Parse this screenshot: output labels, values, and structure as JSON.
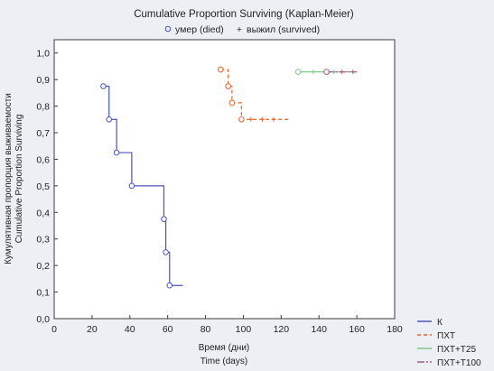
{
  "chart_data": {
    "type": "line",
    "title": "Cumulative Proportion Surviving (Kaplan-Meier)",
    "legend_markers": {
      "died": {
        "symbol": "o",
        "label": "умер (died)"
      },
      "survived": {
        "symbol": "+",
        "label": "выжил (survived)"
      }
    },
    "xlabel_ru": "Время (дни)",
    "xlabel_en": "Time (days)",
    "ylabel_ru": "Кумулятивная пропорция выживаемости",
    "ylabel_en": "Cumulative Proportion Surviving",
    "xlim": [
      0,
      180
    ],
    "ylim": [
      0,
      1.05
    ],
    "x_ticks": [
      0,
      20,
      40,
      60,
      80,
      100,
      120,
      140,
      160,
      180
    ],
    "x_tick_labels": [
      "0",
      "20",
      "40",
      "60",
      "80",
      "100",
      "120",
      "140",
      "160",
      "180"
    ],
    "y_ticks": [
      0,
      0.1,
      0.2,
      0.3,
      0.4,
      0.5,
      0.6,
      0.7,
      0.8,
      0.9,
      1.0
    ],
    "y_tick_labels": [
      "0,0",
      "0,1",
      "0,2",
      "0,3",
      "0,4",
      "0,5",
      "0,6",
      "0,7",
      "0,8",
      "0,9",
      "1,0"
    ],
    "grid": false,
    "legend_position": "bottom-right",
    "series": [
      {
        "name": "К",
        "color": "#4a55b8",
        "dash": "solid",
        "steps": [
          [
            26,
            0.875
          ],
          [
            29,
            0.75
          ],
          [
            33,
            0.625
          ],
          [
            41,
            0.5
          ],
          [
            58,
            0.375
          ],
          [
            59,
            0.25
          ],
          [
            61,
            0.125
          ],
          [
            68,
            0.125
          ]
        ],
        "died": [
          [
            26,
            0.875
          ],
          [
            29,
            0.75
          ],
          [
            33,
            0.625
          ],
          [
            41,
            0.5
          ],
          [
            58,
            0.375
          ],
          [
            59,
            0.25
          ],
          [
            61,
            0.125
          ]
        ],
        "censored": []
      },
      {
        "name": "ПХТ",
        "color": "#e8622e",
        "dash": "4,3",
        "steps": [
          [
            88,
            0.9375
          ],
          [
            92,
            0.875
          ],
          [
            94,
            0.8125
          ],
          [
            99,
            0.75
          ],
          [
            125,
            0.75
          ]
        ],
        "died": [
          [
            88,
            0.9375
          ],
          [
            92,
            0.875
          ],
          [
            94,
            0.8125
          ],
          [
            99,
            0.75
          ]
        ],
        "censored": [
          [
            104,
            0.75
          ],
          [
            110,
            0.75
          ],
          [
            116,
            0.75
          ]
        ]
      },
      {
        "name": "ПХТ+Т25",
        "color": "#7fc98a",
        "dash": "solid",
        "steps": [
          [
            129,
            0.929
          ],
          [
            160,
            0.929
          ]
        ],
        "died": [
          [
            129,
            0.929
          ]
        ],
        "censored": [
          [
            137,
            0.929
          ],
          [
            148,
            0.929
          ]
        ]
      },
      {
        "name": "ПХТ+Т100",
        "color": "#a45a8a",
        "dash": "8,2,2,2",
        "steps": [
          [
            144,
            0.929
          ],
          [
            160,
            0.929
          ]
        ],
        "died": [
          [
            144,
            0.929
          ]
        ],
        "censored": [
          [
            152,
            0.929
          ],
          [
            158,
            0.929
          ]
        ]
      }
    ]
  }
}
